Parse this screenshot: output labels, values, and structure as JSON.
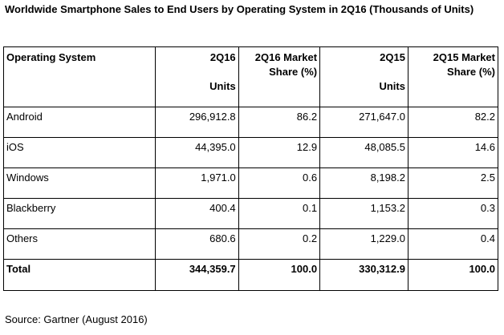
{
  "title": "Worldwide Smartphone Sales to End Users by Operating System in 2Q16 (Thousands of Units)",
  "table": {
    "headers": {
      "os": "Operating System",
      "units_2q16_top": "2Q16",
      "units_2q16_bottom": "Units",
      "share_2q16_top": "2Q16 Market",
      "share_2q16_bottom": "Share (%)",
      "units_2q15_top": "2Q15",
      "units_2q15_bottom": "Units",
      "share_2q15_top": "2Q15 Market",
      "share_2q15_bottom": "Share (%)"
    },
    "rows": [
      {
        "os": "Android",
        "units_2q16": "296,912.8",
        "share_2q16": "86.2",
        "units_2q15": "271,647.0",
        "share_2q15": "82.2"
      },
      {
        "os": "iOS",
        "units_2q16": "44,395.0",
        "share_2q16": "12.9",
        "units_2q15": "48,085.5",
        "share_2q15": "14.6"
      },
      {
        "os": "Windows",
        "units_2q16": "1,971.0",
        "share_2q16": "0.6",
        "units_2q15": "8,198.2",
        "share_2q15": "2.5"
      },
      {
        "os": "Blackberry",
        "units_2q16": "400.4",
        "share_2q16": "0.1",
        "units_2q15": "1,153.2",
        "share_2q15": "0.3"
      },
      {
        "os": "Others",
        "units_2q16": "680.6",
        "share_2q16": "0.2",
        "units_2q15": "1,229.0",
        "share_2q15": "0.4"
      }
    ],
    "total": {
      "os": "Total",
      "units_2q16": "344,359.7",
      "share_2q16": "100.0",
      "units_2q15": "330,312.9",
      "share_2q15": "100.0"
    }
  },
  "source": "Source: Gartner (August 2016)"
}
